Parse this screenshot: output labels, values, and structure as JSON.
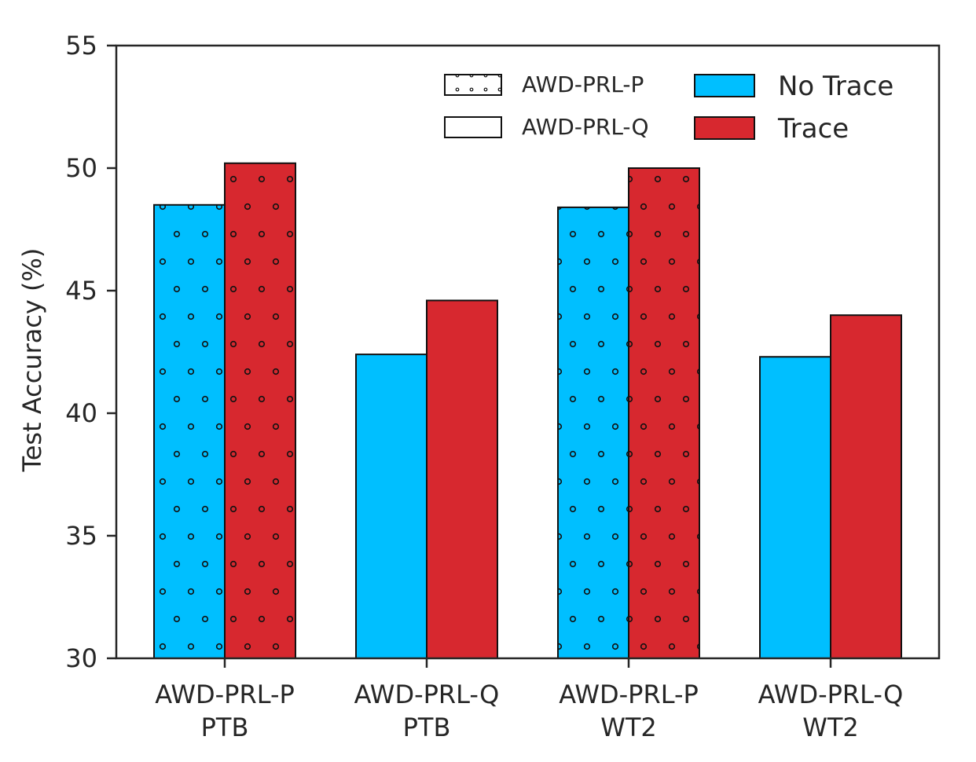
{
  "chart_data": {
    "type": "bar",
    "title": "",
    "xlabel": "",
    "ylabel": "Test Accuracy (%)",
    "ylim": [
      30,
      55
    ],
    "yticks": [
      30,
      35,
      40,
      45,
      50,
      55
    ],
    "grid": false,
    "categories": [
      {
        "line1": "AWD-PRL-P",
        "line2": "PTB",
        "pattern": "AWD-PRL-P"
      },
      {
        "line1": "AWD-PRL-Q",
        "line2": "PTB",
        "pattern": "AWD-PRL-Q"
      },
      {
        "line1": "AWD-PRL-P",
        "line2": "WT2",
        "pattern": "AWD-PRL-P"
      },
      {
        "line1": "AWD-PRL-Q",
        "line2": "WT2",
        "pattern": "AWD-PRL-Q"
      }
    ],
    "series": [
      {
        "name": "No Trace",
        "color": "#00BFFF",
        "values": [
          48.5,
          42.4,
          48.4,
          42.3
        ]
      },
      {
        "name": "Trace",
        "color": "#D7282F",
        "values": [
          50.2,
          44.6,
          50.0,
          44.0
        ]
      }
    ],
    "legend": {
      "placement": "top-right",
      "pattern_entries": [
        {
          "label": "AWD-PRL-P",
          "hatch": "dots"
        },
        {
          "label": "AWD-PRL-Q",
          "hatch": "none"
        }
      ],
      "color_entries": [
        {
          "label": "No Trace",
          "color": "#00BFFF"
        },
        {
          "label": "Trace",
          "color": "#D7282F"
        }
      ]
    }
  }
}
